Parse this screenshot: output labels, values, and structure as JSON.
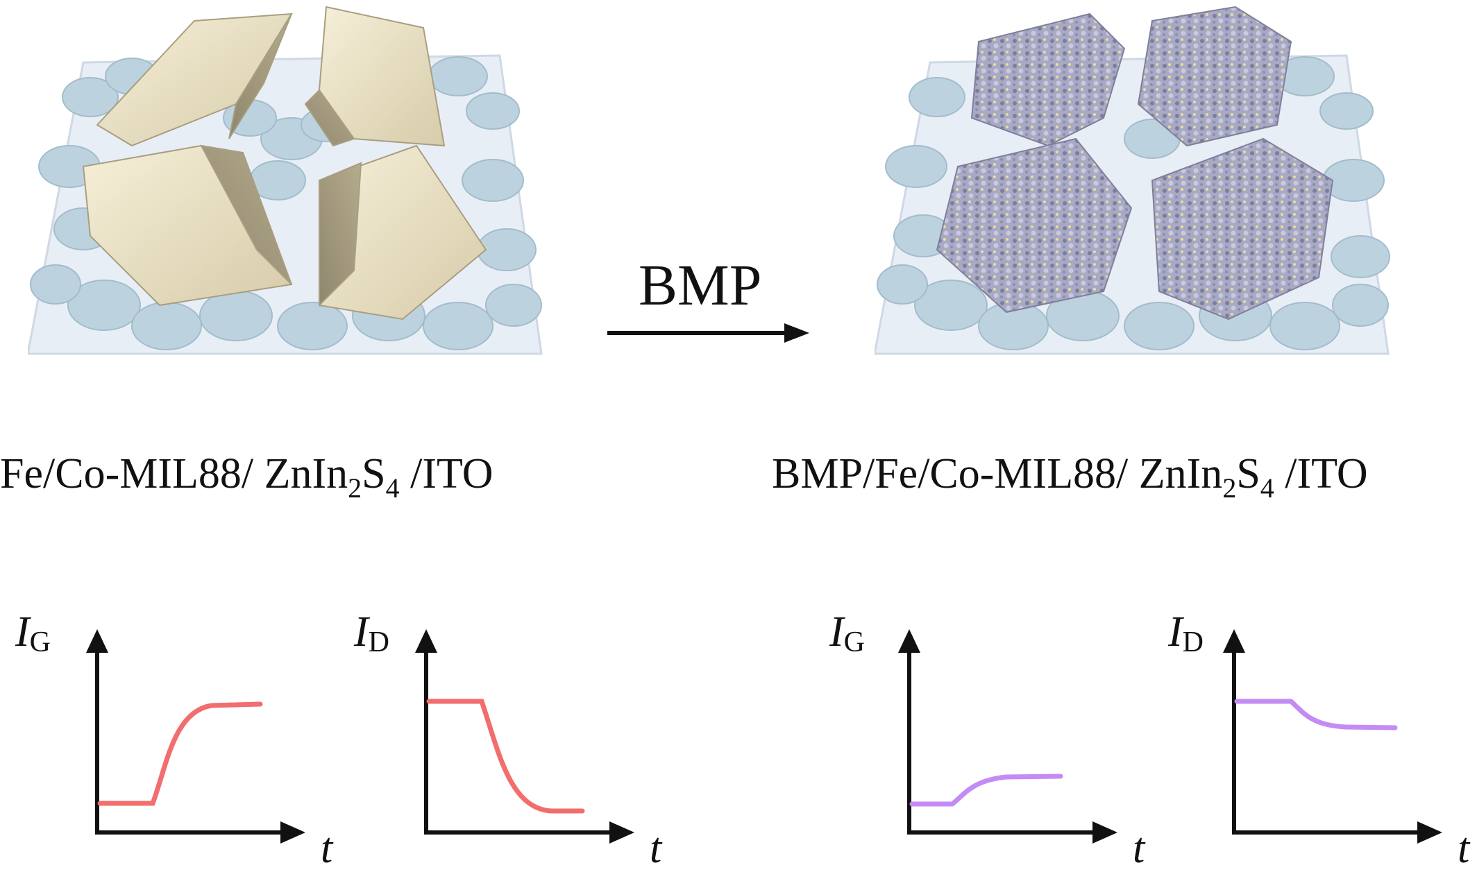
{
  "left_panel": {
    "label_prefix": "Fe/Co-MIL88/ ZnIn",
    "label_sub1": "2",
    "label_mid": "S",
    "label_sub2": "4",
    "label_suffix": " /ITO"
  },
  "arrow": {
    "label": "BMP"
  },
  "right_panel": {
    "label_prefix": "BMP/Fe/Co-MIL88/ ZnIn",
    "label_sub1": "2",
    "label_mid": "S",
    "label_sub2": "4",
    "label_suffix": " /ITO"
  },
  "plots": [
    {
      "y_symbol": "I",
      "y_sub": "G",
      "x_symbol": "t",
      "color": "#f26d6d"
    },
    {
      "y_symbol": "I",
      "y_sub": "D",
      "x_symbol": "t",
      "color": "#f26d6d"
    },
    {
      "y_symbol": "I",
      "y_sub": "G",
      "x_symbol": "t",
      "color": "#c38cf5"
    },
    {
      "y_symbol": "I",
      "y_sub": "D",
      "x_symbol": "t",
      "color": "#c38cf5"
    }
  ],
  "colors": {
    "substrate": "#e6ecf4",
    "nanosheets": "#b7cfdc",
    "crystal": "#efe6cc",
    "coated_crystal": "#a7a8c2",
    "curve_before": "#f26d6d",
    "curve_after": "#c38cf5"
  }
}
